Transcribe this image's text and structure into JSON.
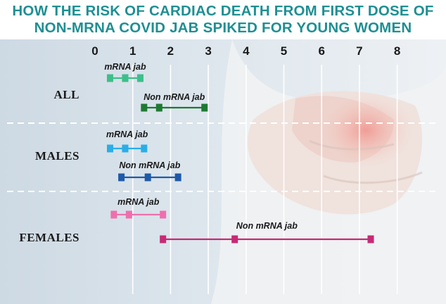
{
  "title_lines": [
    "HOW THE RISK OF CARDIAC DEATH FROM FIRST DOSE OF",
    "NON-MRNA COVID JAB SPIKED FOR YOUNG WOMEN"
  ],
  "colors": {
    "title_text": "#1f8f93",
    "all_mrna": "#3dbf8a",
    "all_non_mrna": "#1e7a32",
    "males_mrna": "#29aee8",
    "males_non_mrna": "#1f5aa8",
    "females_mrna": "#ef6fae",
    "females_non_mrna": "#c62a75"
  },
  "chart_data": {
    "type": "interval",
    "title": "HOW THE RISK OF CARDIAC DEATH FROM FIRST DOSE OF NON-MRNA COVID JAB SPIKED FOR YOUNG WOMEN",
    "xlabel": "",
    "ylabel": "",
    "xlim": [
      0,
      8
    ],
    "xticks": [
      "0",
      "1",
      "2",
      "3",
      "4",
      "5",
      "6",
      "7",
      "8"
    ],
    "groups": [
      "ALL",
      "MALES",
      "FEMALES"
    ],
    "series": [
      {
        "group": "ALL",
        "name": "mRNA jab",
        "low": 0.4,
        "estimate": 0.8,
        "high": 1.2
      },
      {
        "group": "ALL",
        "name": "Non mRNA jab",
        "low": 1.3,
        "estimate": 1.7,
        "high": 2.9
      },
      {
        "group": "MALES",
        "name": "mRNA jab",
        "low": 0.4,
        "estimate": 0.8,
        "high": 1.3
      },
      {
        "group": "MALES",
        "name": "Non mRNA jab",
        "low": 0.7,
        "estimate": 1.4,
        "high": 2.2
      },
      {
        "group": "FEMALES",
        "name": "mRNA jab",
        "low": 0.5,
        "estimate": 0.9,
        "high": 1.8
      },
      {
        "group": "FEMALES",
        "name": "Non mRNA jab",
        "low": 1.8,
        "estimate": 3.7,
        "high": 7.3
      }
    ],
    "grid": true
  }
}
